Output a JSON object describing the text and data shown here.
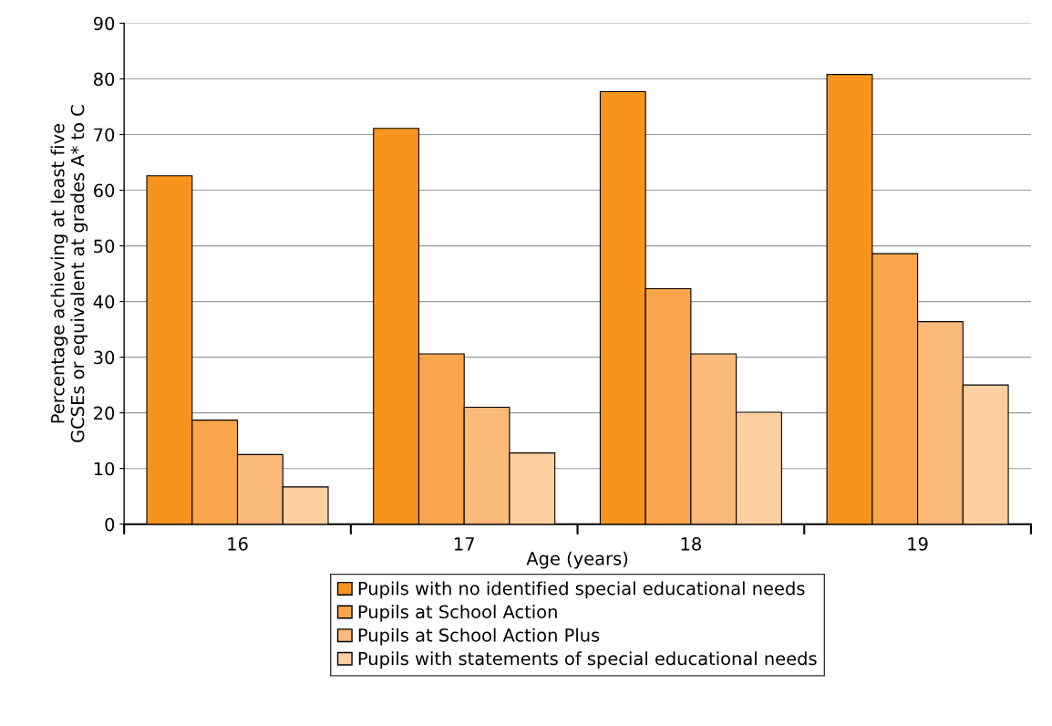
{
  "chart_data": {
    "type": "bar",
    "xlabel": "Age (years)",
    "ylabel": "Percentage achieving at least five\nGCSEs or equivalent at grades A* to C",
    "categories": [
      "16",
      "17",
      "18",
      "19"
    ],
    "series": [
      {
        "name": "Pupils with no identified special educational needs",
        "color": "#f7941d",
        "values": [
          62.6,
          71.1,
          77.7,
          80.8
        ]
      },
      {
        "name": "Pupils at School Action",
        "color": "#f9a54c",
        "values": [
          18.7,
          30.6,
          42.3,
          48.6
        ]
      },
      {
        "name": "Pupils at School Action Plus",
        "color": "#fbb97a",
        "values": [
          12.5,
          21.0,
          30.6,
          36.4
        ]
      },
      {
        "name": "Pupils with statements of special educational needs",
        "color": "#fdd0a2",
        "values": [
          6.7,
          12.8,
          20.1,
          25.0
        ]
      }
    ],
    "ylim": [
      0,
      90
    ],
    "yticks": [
      0,
      10,
      20,
      30,
      40,
      50,
      60,
      70,
      80,
      90
    ],
    "grid": "y",
    "legend": "bottom"
  }
}
